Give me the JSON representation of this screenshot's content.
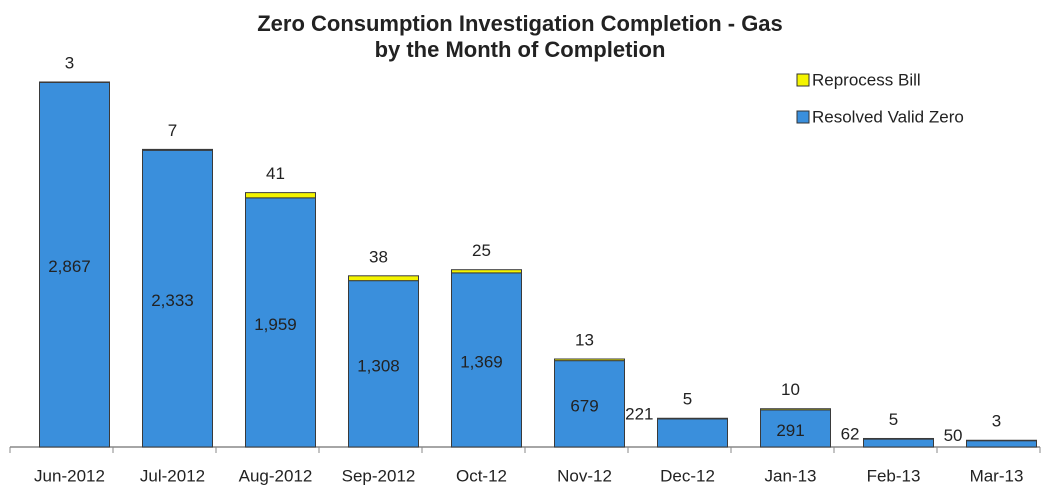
{
  "chart_data": {
    "type": "stacked_bar",
    "title": "Zero Consumption Investigation Completion - Gas",
    "subtitle": "by the Month of Completion",
    "categories": [
      "Jun-2012",
      "Jul-2012",
      "Aug-2012",
      "Sep-2012",
      "Oct-12",
      "Nov-12",
      "Dec-12",
      "Jan-13",
      "Feb-13",
      "Mar-13"
    ],
    "series": [
      {
        "name": "Resolved Valid Zero",
        "color": "#3a8fdc",
        "values": [
          2867,
          2333,
          1959,
          1308,
          1369,
          679,
          221,
          291,
          62,
          50
        ],
        "value_labels": [
          "2,867",
          "2,333",
          "1,959",
          "1,308",
          "1,369",
          "679",
          "221",
          "291",
          "62",
          "50"
        ]
      },
      {
        "name": "Reprocess Bill",
        "color": "#f4f400",
        "values": [
          3,
          7,
          41,
          38,
          25,
          13,
          5,
          10,
          5,
          3
        ]
      }
    ],
    "ylim": [
      0,
      3145
    ],
    "legend": "top-right"
  }
}
